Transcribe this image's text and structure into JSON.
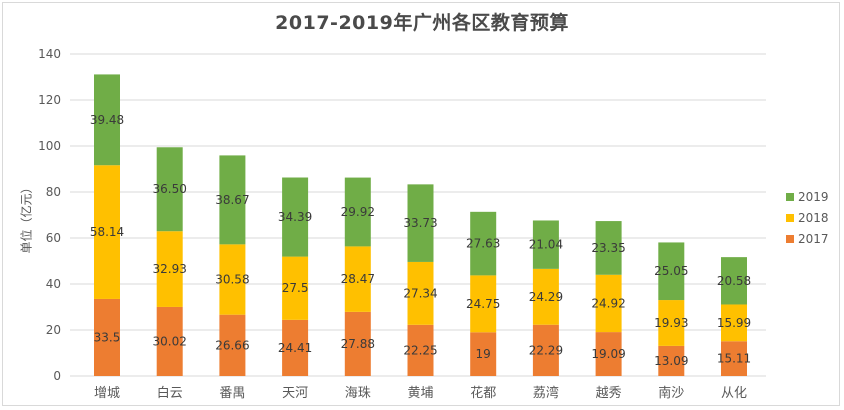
{
  "chart_data": {
    "type": "bar",
    "stacked": true,
    "title": "2017-2019年广州各区教育预算",
    "xlabel": "",
    "ylabel": "单位（亿元）",
    "ylim": [
      0,
      140
    ],
    "yticks": [
      0,
      20,
      40,
      60,
      80,
      100,
      120,
      140
    ],
    "ytick_labels": [
      "0",
      "20",
      "40",
      "60",
      "80",
      "100",
      "120",
      "140"
    ],
    "grid": true,
    "legend_position": "right",
    "categories": [
      "增城",
      "白云",
      "番禺",
      "天河",
      "海珠",
      "黄埔",
      "花都",
      "荔湾",
      "越秀",
      "南沙",
      "从化"
    ],
    "series": [
      {
        "name": "2017",
        "color": "#ed7d31",
        "values": [
          33.5,
          30.02,
          26.66,
          24.41,
          27.88,
          22.25,
          19,
          22.29,
          19.09,
          13.09,
          15.11
        ],
        "labels": [
          "33.5",
          "30.02",
          "26.66",
          "24.41",
          "27.88",
          "22.25",
          "19",
          "22.29",
          "19.09",
          "13.09",
          "15.11"
        ]
      },
      {
        "name": "2018",
        "color": "#ffc000",
        "values": [
          58.14,
          32.93,
          30.58,
          27.5,
          28.47,
          27.34,
          24.75,
          24.29,
          24.92,
          19.93,
          15.99
        ],
        "labels": [
          "58.14",
          "32.93",
          "30.58",
          "27.5",
          "28.47",
          "27.34",
          "24.75",
          "24.29",
          "24.92",
          "19.93",
          "15.99"
        ]
      },
      {
        "name": "2019",
        "color": "#70ad47",
        "values": [
          39.48,
          36.5,
          38.67,
          34.39,
          29.92,
          33.73,
          27.63,
          21.04,
          23.35,
          25.05,
          20.58
        ],
        "labels": [
          "39.48",
          "36.50",
          "38.67",
          "34.39",
          "29.92",
          "33.73",
          "27.63",
          "21.04",
          "23.35",
          "25.05",
          "20.58"
        ]
      }
    ],
    "legend_order": [
      "2019",
      "2018",
      "2017"
    ]
  }
}
